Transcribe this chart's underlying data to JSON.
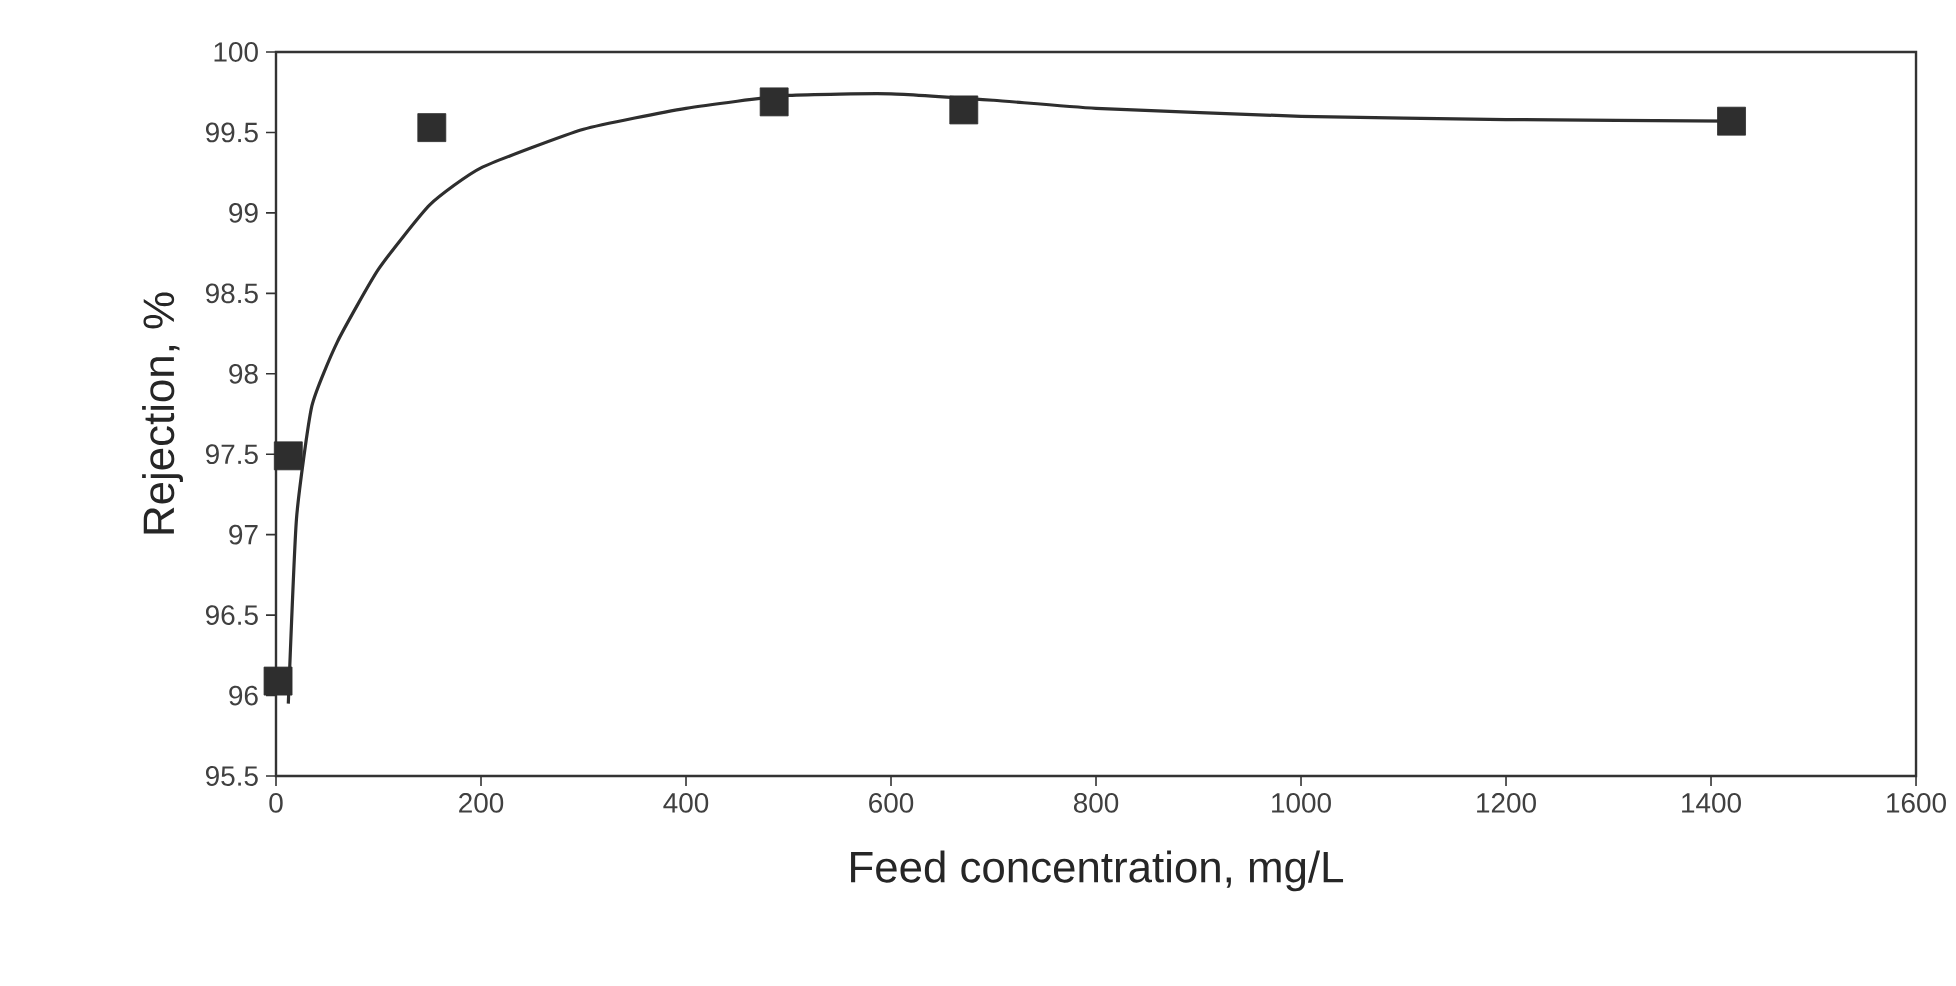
{
  "chart_data": {
    "type": "scatter",
    "xlabel": "Feed concentration, mg/L",
    "ylabel": "Rejection, %",
    "xlim": [
      0,
      1600
    ],
    "xticks": [
      0,
      200,
      400,
      600,
      800,
      1000,
      1200,
      1400,
      1600
    ],
    "ylim": [
      95.5,
      100
    ],
    "yticks": [
      95.5,
      96,
      96.5,
      97,
      97.5,
      98,
      98.5,
      99,
      99.5,
      100
    ],
    "grid": false,
    "series": [
      {
        "marker": "square",
        "color": "#2e2e2e",
        "x": [
          2,
          12,
          152,
          486,
          671,
          1420
        ],
        "values": [
          96.09,
          97.49,
          99.53,
          99.69,
          99.64,
          99.57
        ]
      },
      {
        "type": "line",
        "marker": "none",
        "line_style": "solid",
        "color": "#2e2e2e",
        "x": [
          12,
          20,
          35,
          60,
          100,
          150,
          200,
          300,
          400,
          500,
          600,
          700,
          800,
          1000,
          1200,
          1420
        ],
        "values": [
          95.95,
          97.1,
          97.8,
          98.2,
          98.65,
          99.05,
          99.28,
          99.52,
          99.65,
          99.73,
          99.74,
          99.7,
          99.65,
          99.6,
          99.58,
          99.57
        ]
      }
    ]
  }
}
